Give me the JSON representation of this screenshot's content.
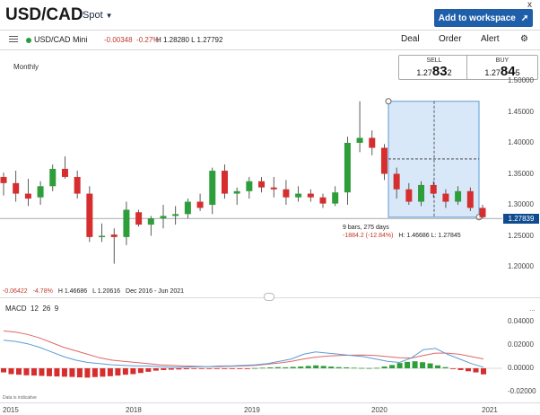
{
  "header": {
    "title": "USD/CAD",
    "spot_label": "Spot",
    "workspace_label": "Add to workspace",
    "close_symbol": "x"
  },
  "toolbar": {
    "instrument_name": "USD/CAD Mini",
    "change": "-0.00348",
    "change_pct": "-0.27%",
    "high_low": "H 1.28280  L 1.27792",
    "deal_label": "Deal",
    "order_label": "Order",
    "alert_label": "Alert"
  },
  "prices": {
    "sell_label": "SELL",
    "sell_prefix": "1.27",
    "sell_big": "83",
    "sell_small": "2",
    "buy_label": "BUY",
    "buy_prefix": "1.27",
    "buy_big": "84",
    "buy_small": "5",
    "current_price": "1.27839"
  },
  "chart_info": {
    "timeframe": "Monthly",
    "change": "-0.06422",
    "change_pct": "-4.78%",
    "high": "H 1.46686",
    "low": "L 1.20616",
    "range": "Dec 2016 - Jun 2021",
    "measure_bars": "9 bars, 275 days",
    "measure_change": "-1884.2 (-12.84%)",
    "measure_hl": "H: 1.46686  L: 1.27845"
  },
  "macd": {
    "label": "MACD",
    "fast": "12",
    "slow": "26",
    "signal": "9",
    "menu_symbol": "..."
  },
  "footer": {
    "note": "Data is indicative"
  },
  "colors": {
    "up": "#2e9e3a",
    "down": "#d62e2e",
    "accent": "#1f5faa",
    "macd_line": "#5b9bd5",
    "signal_line": "#e06666",
    "selection": "#cfe2f7"
  },
  "chart_data": [
    {
      "type": "candlestick",
      "title": "",
      "y_axis_labels": [
        "1.50000",
        "1.45000",
        "1.40000",
        "1.35000",
        "1.30000",
        "1.25000",
        "1.20000"
      ],
      "ylim": [
        1.175,
        1.525
      ],
      "x_tick_labels": [
        "2015",
        "2018",
        "2019",
        "2020",
        "2021"
      ],
      "candles": [
        [
          1.345,
          1.352,
          1.315,
          1.335
        ],
        [
          1.335,
          1.355,
          1.305,
          1.318
        ],
        [
          1.318,
          1.342,
          1.298,
          1.31
        ],
        [
          1.312,
          1.338,
          1.3,
          1.33
        ],
        [
          1.33,
          1.365,
          1.322,
          1.358
        ],
        [
          1.358,
          1.378,
          1.342,
          1.345
        ],
        [
          1.345,
          1.355,
          1.31,
          1.318
        ],
        [
          1.318,
          1.33,
          1.24,
          1.248
        ],
        [
          1.248,
          1.27,
          1.24,
          1.25
        ],
        [
          1.252,
          1.262,
          1.205,
          1.248
        ],
        [
          1.248,
          1.305,
          1.235,
          1.292
        ],
        [
          1.288,
          1.292,
          1.265,
          1.268
        ],
        [
          1.268,
          1.282,
          1.25,
          1.278
        ],
        [
          1.278,
          1.3,
          1.262,
          1.282
        ],
        [
          1.282,
          1.298,
          1.268,
          1.285
        ],
        [
          1.285,
          1.31,
          1.278,
          1.305
        ],
        [
          1.305,
          1.318,
          1.29,
          1.295
        ],
        [
          1.3,
          1.36,
          1.285,
          1.355
        ],
        [
          1.355,
          1.365,
          1.31,
          1.318
        ],
        [
          1.318,
          1.328,
          1.3,
          1.322
        ],
        [
          1.322,
          1.345,
          1.31,
          1.338
        ],
        [
          1.338,
          1.345,
          1.32,
          1.328
        ],
        [
          1.328,
          1.345,
          1.312,
          1.325
        ],
        [
          1.325,
          1.34,
          1.3,
          1.312
        ],
        [
          1.312,
          1.33,
          1.305,
          1.318
        ],
        [
          1.318,
          1.325,
          1.305,
          1.312
        ],
        [
          1.312,
          1.318,
          1.295,
          1.302
        ],
        [
          1.302,
          1.33,
          1.298,
          1.32
        ],
        [
          1.32,
          1.41,
          1.3,
          1.4
        ],
        [
          1.4,
          1.467,
          1.385,
          1.408
        ],
        [
          1.408,
          1.42,
          1.38,
          1.392
        ],
        [
          1.392,
          1.398,
          1.34,
          1.35
        ],
        [
          1.35,
          1.36,
          1.31,
          1.325
        ],
        [
          1.325,
          1.335,
          1.3,
          1.305
        ],
        [
          1.305,
          1.338,
          1.298,
          1.332
        ],
        [
          1.332,
          1.338,
          1.312,
          1.318
        ],
        [
          1.318,
          1.325,
          1.295,
          1.305
        ],
        [
          1.305,
          1.33,
          1.3,
          1.322
        ],
        [
          1.322,
          1.328,
          1.29,
          1.295
        ],
        [
          1.295,
          1.3,
          1.278,
          1.28
        ]
      ]
    },
    {
      "type": "macd",
      "title": "",
      "y_axis_labels": [
        "0.04000",
        "0.02000",
        "0.00000",
        "-0.02000"
      ],
      "ylim": [
        -0.025,
        0.045
      ],
      "histogram": [
        -0.0035,
        -0.005,
        -0.0055,
        -0.006,
        -0.0062,
        -0.0065,
        -0.0068,
        -0.007,
        -0.0072,
        -0.0074,
        -0.0078,
        -0.008,
        -0.0075,
        -0.0072,
        -0.0068,
        -0.0062,
        -0.0055,
        -0.005,
        -0.004,
        -0.003,
        -0.002,
        -0.0015,
        -0.0012,
        -0.001,
        -0.0008,
        -0.0006,
        -0.0005,
        -0.0004,
        -0.0003,
        -0.0002,
        -0.0002,
        -0.0003,
        -0.0002,
        0.0002,
        0.0005,
        0.0008,
        0.001,
        0.0008,
        0.0012,
        0.0015,
        0.002,
        0.0025,
        0.002,
        0.0015,
        0.001,
        0.0008,
        0.0005,
        0.0003,
        0.0002,
        0.0004,
        0.0015,
        0.0028,
        0.0045,
        0.0055,
        0.006,
        0.0052,
        0.0042,
        0.0025,
        0.001,
        -0.0005,
        -0.0015,
        -0.0025,
        -0.0035,
        -0.0052
      ],
      "macd_line": [
        0.024,
        0.023,
        0.021,
        0.018,
        0.014,
        0.01,
        0.007,
        0.005,
        0.004,
        0.003,
        0.0025,
        0.002,
        0.002,
        0.0015,
        0.001,
        0.001,
        0.0012,
        0.0015,
        0.002,
        0.002,
        0.0025,
        0.003,
        0.004,
        0.006,
        0.008,
        0.012,
        0.014,
        0.013,
        0.012,
        0.011,
        0.01,
        0.008,
        0.006,
        0.005,
        0.009,
        0.016,
        0.017,
        0.012,
        0.008,
        0.004,
        0.001
      ],
      "signal_line": [
        0.032,
        0.031,
        0.029,
        0.026,
        0.022,
        0.018,
        0.015,
        0.012,
        0.009,
        0.007,
        0.006,
        0.005,
        0.004,
        0.003,
        0.0025,
        0.002,
        0.0018,
        0.0015,
        0.0015,
        0.0018,
        0.002,
        0.0025,
        0.0035,
        0.0045,
        0.006,
        0.008,
        0.0095,
        0.0105,
        0.011,
        0.0112,
        0.0113,
        0.011,
        0.01,
        0.009,
        0.0088,
        0.011,
        0.013,
        0.013,
        0.012,
        0.01,
        0.008
      ]
    }
  ]
}
